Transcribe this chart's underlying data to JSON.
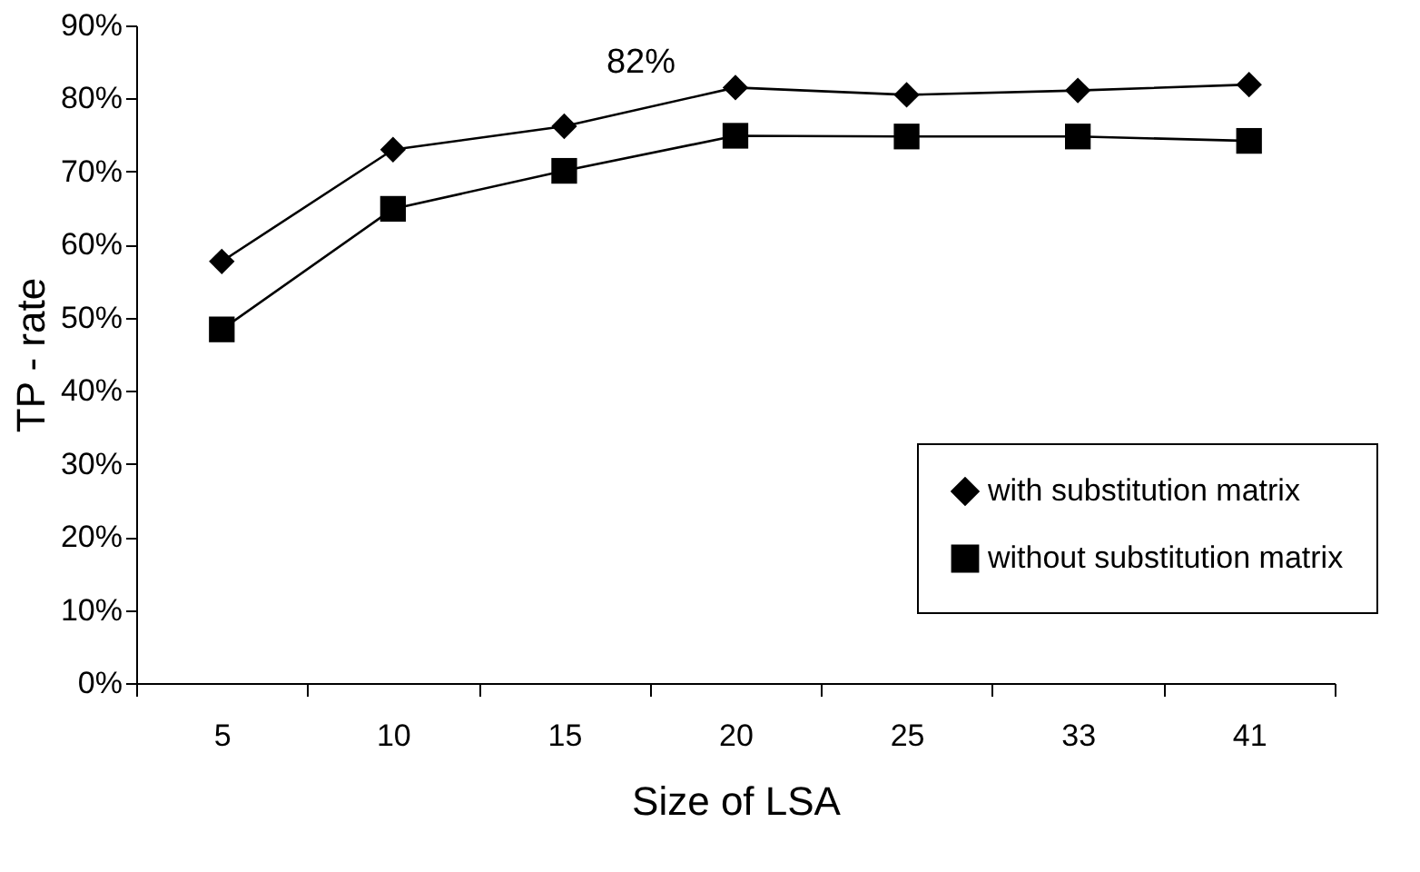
{
  "chart_data": {
    "type": "line",
    "xlabel": "Size of LSA",
    "ylabel": "TP - rate",
    "categories": [
      "5",
      "10",
      "15",
      "20",
      "25",
      "33",
      "41"
    ],
    "series": [
      {
        "name": "with substitution matrix",
        "color": "#000000",
        "marker": "diamond",
        "values": [
          57.7,
          73,
          76.2,
          81.5,
          80.5,
          81.1,
          81.9
        ]
      },
      {
        "name": "without substitution matrix",
        "color": "#000000",
        "marker": "square",
        "values": [
          48.4,
          64.9,
          70.1,
          74.9,
          74.8,
          74.8,
          74.2
        ]
      }
    ],
    "ylim": [
      0,
      90
    ],
    "yticks": [
      {
        "value": 0,
        "label": "0%"
      },
      {
        "value": 10,
        "label": "10%"
      },
      {
        "value": 20,
        "label": "20%"
      },
      {
        "value": 30,
        "label": "30%"
      },
      {
        "value": 40,
        "label": "40%"
      },
      {
        "value": 50,
        "label": "50%"
      },
      {
        "value": 60,
        "label": "60%"
      },
      {
        "value": 70,
        "label": "70%"
      },
      {
        "value": 80,
        "label": "80%"
      },
      {
        "value": 90,
        "label": "90%"
      }
    ],
    "annotations": [
      {
        "text": "82%",
        "x": "20",
        "y": 82
      }
    ],
    "grid": false,
    "legend": "right",
    "line_style": "solid"
  }
}
